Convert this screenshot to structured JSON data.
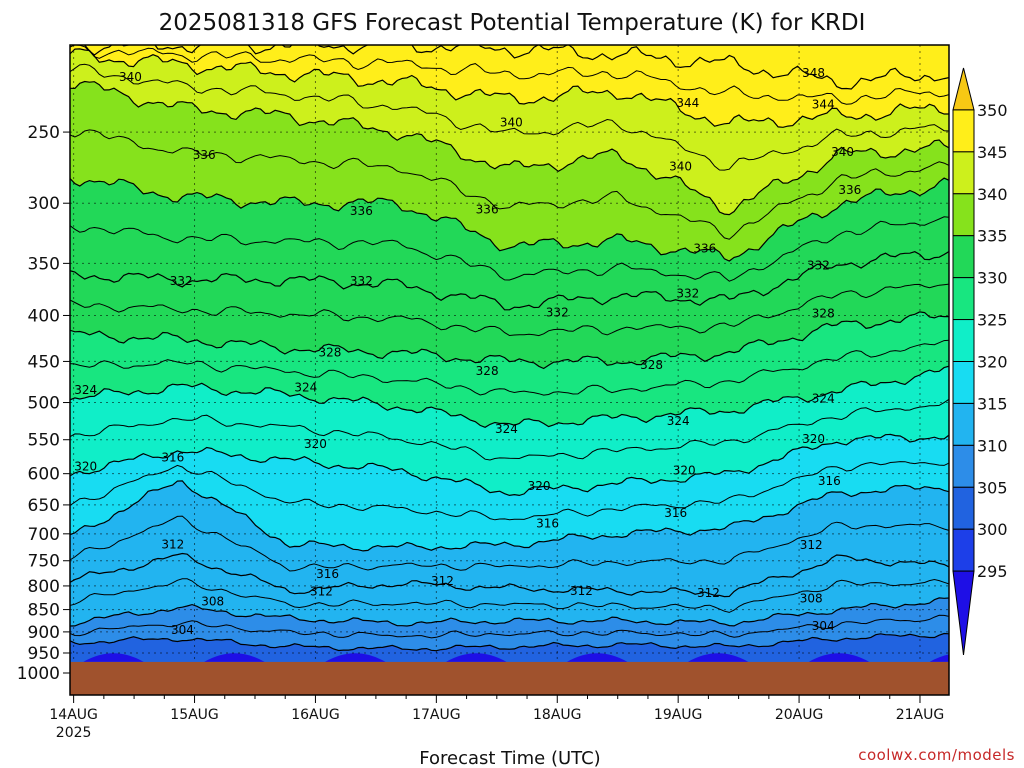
{
  "chart_data": {
    "type": "heatmap",
    "title": "2025081318 GFS Forecast Potential Temperature (K) for KRDI",
    "xlabel": "Forecast Time (UTC)",
    "ylabel": "",
    "y_scale": "log-pressure (hPa, inverted)",
    "ylim": [
      1000,
      200
    ],
    "yticks": [
      250,
      300,
      350,
      400,
      450,
      500,
      550,
      600,
      650,
      700,
      750,
      800,
      850,
      900,
      950,
      1000
    ],
    "xticks": [
      {
        "label": "14AUG",
        "sub": "2025",
        "day": 0
      },
      {
        "label": "15AUG",
        "sub": "",
        "day": 1
      },
      {
        "label": "16AUG",
        "sub": "",
        "day": 2
      },
      {
        "label": "17AUG",
        "sub": "",
        "day": 3
      },
      {
        "label": "18AUG",
        "sub": "",
        "day": 4
      },
      {
        "label": "19AUG",
        "sub": "",
        "day": 5
      },
      {
        "label": "20AUG",
        "sub": "",
        "day": 6
      },
      {
        "label": "21AUG",
        "sub": "",
        "day": 7
      }
    ],
    "x_range_days": [
      -0.03,
      7.24
    ],
    "ground_pressure_hPa": 972,
    "ground_color": "#a0522d",
    "colorbar": {
      "levels": [
        295,
        300,
        305,
        310,
        315,
        320,
        325,
        330,
        335,
        340,
        345,
        350
      ],
      "colors": [
        "#1e0fe6",
        "#1d3fe8",
        "#2163e0",
        "#2d8de8",
        "#22b4f0",
        "#18dcf2",
        "#10eec8",
        "#18e680",
        "#22d858",
        "#86e21c",
        "#cdf01c",
        "#ffee1a",
        "#f7c814"
      ],
      "labels": [
        "295",
        "300",
        "305",
        "310",
        "315",
        "320",
        "325",
        "330",
        "335",
        "340",
        "345",
        "350"
      ]
    },
    "isentropes": [
      {
        "theta": 304,
        "pressure_profile_hPa": [
          925,
          915,
          935,
          940,
          935,
          930,
          935,
          915,
          905
        ]
      },
      {
        "theta": 308,
        "pressure_profile_hPa": [
          880,
          845,
          870,
          880,
          875,
          875,
          880,
          850,
          830
        ]
      },
      {
        "theta": 312,
        "pressure_profile_hPa": [
          790,
          740,
          810,
          795,
          805,
          810,
          815,
          745,
          760
        ]
      },
      {
        "theta": 316,
        "pressure_profile_hPa": [
          705,
          610,
          720,
          725,
          720,
          700,
          690,
          630,
          620
        ]
      },
      {
        "theta": 320,
        "pressure_profile_hPa": [
          600,
          565,
          580,
          595,
          630,
          615,
          600,
          550,
          545
        ]
      },
      {
        "theta": 324,
        "pressure_profile_hPa": [
          495,
          480,
          490,
          505,
          530,
          520,
          510,
          485,
          460
        ]
      },
      {
        "theta": 328,
        "pressure_profile_hPa": [
          420,
          425,
          435,
          440,
          450,
          450,
          440,
          410,
          400
        ]
      },
      {
        "theta": 332,
        "pressure_profile_hPa": [
          360,
          365,
          365,
          370,
          390,
          380,
          385,
          350,
          340
        ]
      },
      {
        "theta": 336,
        "pressure_profile_hPa": [
          280,
          295,
          300,
          300,
          335,
          330,
          345,
          300,
          285
        ]
      },
      {
        "theta": 340,
        "pressure_profile_hPa": [
          220,
          235,
          240,
          250,
          275,
          265,
          305,
          265,
          260
        ]
      },
      {
        "theta": 344,
        "pressure_profile_hPa": [
          205,
          210,
          215,
          220,
          230,
          225,
          245,
          240,
          235
        ]
      },
      {
        "theta": 348,
        "pressure_profile_hPa": [
          200,
          200,
          200,
          200,
          202,
          205,
          210,
          220,
          215
        ]
      }
    ],
    "contour_labels": [
      {
        "text": "340",
        "day": 0.47,
        "p": 217
      },
      {
        "text": "336",
        "day": 1.08,
        "p": 265
      },
      {
        "text": "340",
        "day": 3.62,
        "p": 244
      },
      {
        "text": "344",
        "day": 5.08,
        "p": 232
      },
      {
        "text": "348",
        "day": 6.12,
        "p": 215
      },
      {
        "text": "344",
        "day": 6.2,
        "p": 233
      },
      {
        "text": "340",
        "day": 5.02,
        "p": 273
      },
      {
        "text": "340",
        "day": 6.36,
        "p": 263
      },
      {
        "text": "336",
        "day": 6.42,
        "p": 290
      },
      {
        "text": "336",
        "day": 2.38,
        "p": 306
      },
      {
        "text": "336",
        "day": 3.42,
        "p": 305
      },
      {
        "text": "336",
        "day": 5.22,
        "p": 337
      },
      {
        "text": "332",
        "day": 5.08,
        "p": 378
      },
      {
        "text": "332",
        "day": 6.16,
        "p": 352
      },
      {
        "text": "328",
        "day": 6.2,
        "p": 398
      },
      {
        "text": "332",
        "day": 0.89,
        "p": 366
      },
      {
        "text": "332",
        "day": 2.38,
        "p": 366
      },
      {
        "text": "332",
        "day": 4.0,
        "p": 397
      },
      {
        "text": "328",
        "day": 2.12,
        "p": 440
      },
      {
        "text": "328",
        "day": 3.42,
        "p": 461
      },
      {
        "text": "328",
        "day": 4.78,
        "p": 454
      },
      {
        "text": "324",
        "day": 0.1,
        "p": 484
      },
      {
        "text": "324",
        "day": 1.92,
        "p": 481
      },
      {
        "text": "324",
        "day": 3.58,
        "p": 535
      },
      {
        "text": "324",
        "day": 5.0,
        "p": 524
      },
      {
        "text": "324",
        "day": 6.2,
        "p": 495
      },
      {
        "text": "320",
        "day": 2.0,
        "p": 556
      },
      {
        "text": "320",
        "day": 0.1,
        "p": 589
      },
      {
        "text": "316",
        "day": 0.82,
        "p": 576
      },
      {
        "text": "320",
        "day": 3.85,
        "p": 619
      },
      {
        "text": "320",
        "day": 5.05,
        "p": 595
      },
      {
        "text": "320",
        "day": 6.12,
        "p": 549
      },
      {
        "text": "316",
        "day": 6.25,
        "p": 611
      },
      {
        "text": "316",
        "day": 3.92,
        "p": 682
      },
      {
        "text": "316",
        "day": 4.98,
        "p": 664
      },
      {
        "text": "312",
        "day": 0.82,
        "p": 719
      },
      {
        "text": "316",
        "day": 2.1,
        "p": 776
      },
      {
        "text": "312",
        "day": 2.05,
        "p": 812
      },
      {
        "text": "312",
        "day": 3.05,
        "p": 790
      },
      {
        "text": "312",
        "day": 4.2,
        "p": 810
      },
      {
        "text": "312",
        "day": 5.25,
        "p": 815
      },
      {
        "text": "312",
        "day": 6.1,
        "p": 720
      },
      {
        "text": "308",
        "day": 1.15,
        "p": 833
      },
      {
        "text": "308",
        "day": 6.1,
        "p": 826
      },
      {
        "text": "304",
        "day": 0.9,
        "p": 896
      },
      {
        "text": "304",
        "day": 6.2,
        "p": 887
      }
    ]
  },
  "credit": "coolwx.com/models"
}
